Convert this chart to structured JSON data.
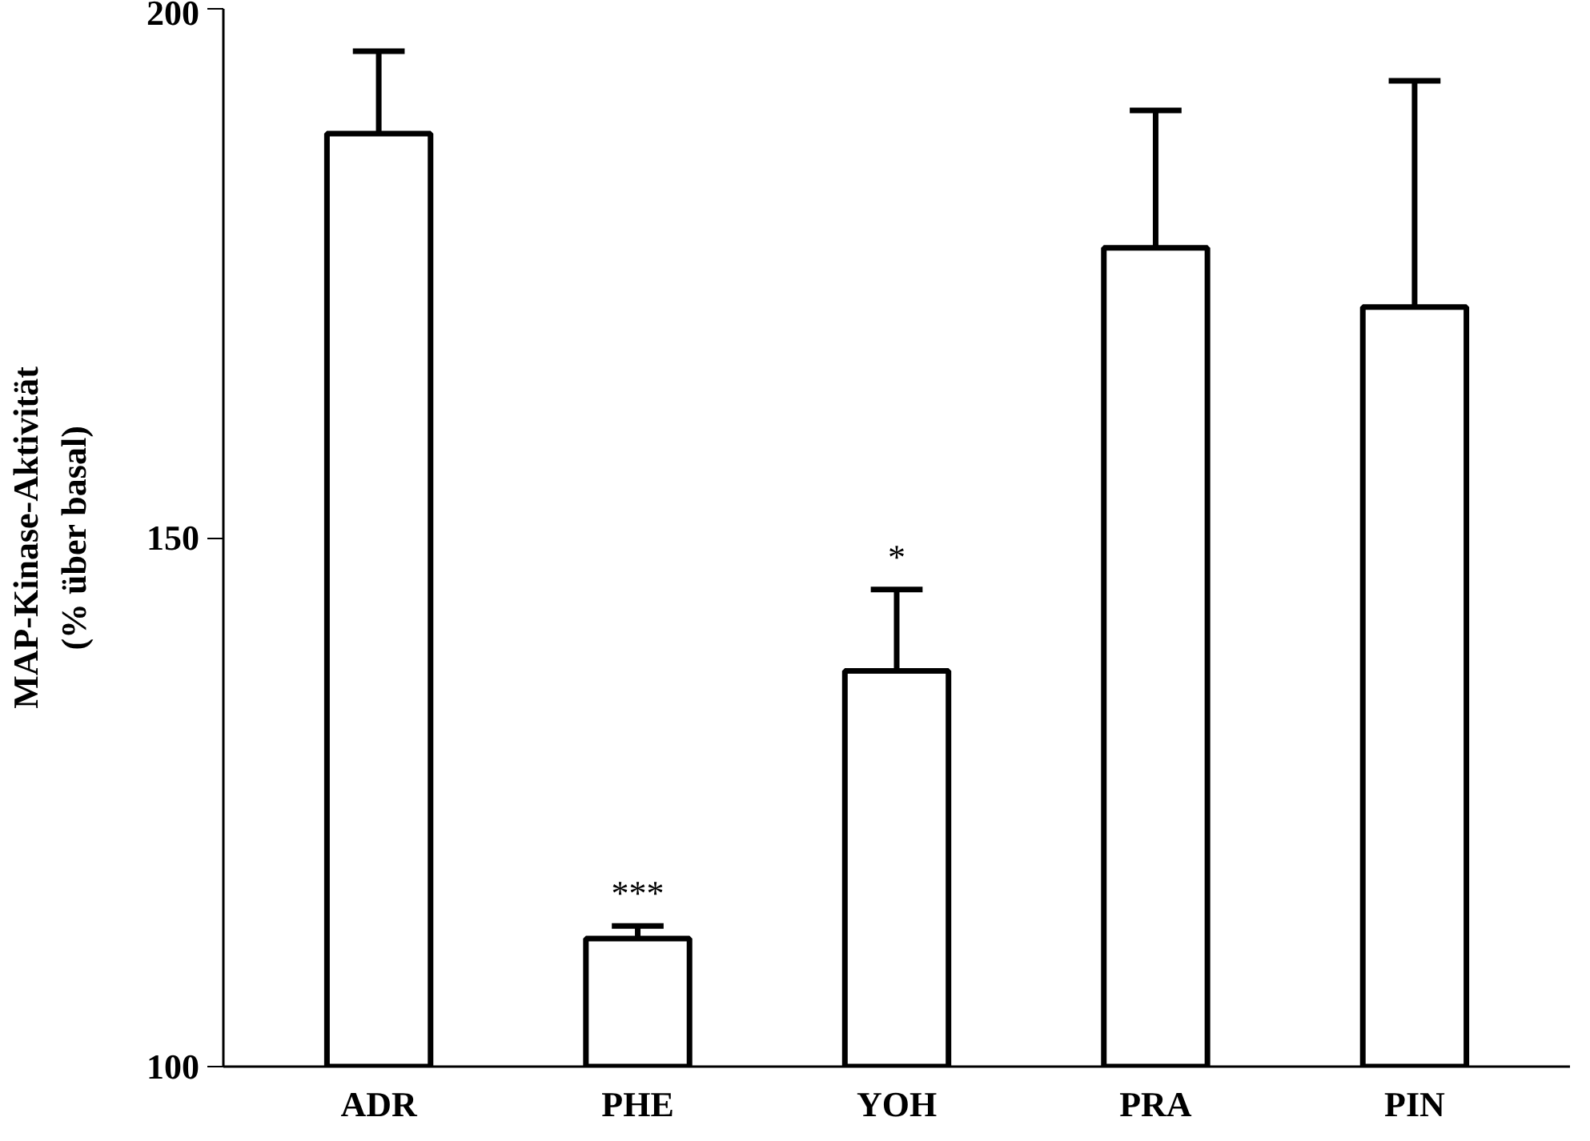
{
  "chart_data": {
    "type": "bar",
    "ylabel": "MAP-Kinase-Aktivität\n(% über basal)",
    "categories": [
      "ADR",
      "PHE",
      "YOH",
      "PRA",
      "PIN"
    ],
    "values": [
      188.2,
      112.1,
      137.4,
      177.4,
      171.8
    ],
    "errors": [
      [
        188.2,
        196.0
      ],
      [
        112.1,
        113.3
      ],
      [
        137.4,
        145.1
      ],
      [
        177.4,
        190.4
      ],
      [
        171.8,
        193.2
      ]
    ],
    "color": "#ffffff",
    "ylim": [
      100,
      200
    ],
    "yticks": [
      100,
      150,
      200
    ],
    "grid": false,
    "annotations": [
      {
        "text": "***",
        "x": "PHE",
        "y": 113.3
      },
      {
        "text": "*",
        "x": "YOH",
        "y": 145.1
      }
    ]
  }
}
